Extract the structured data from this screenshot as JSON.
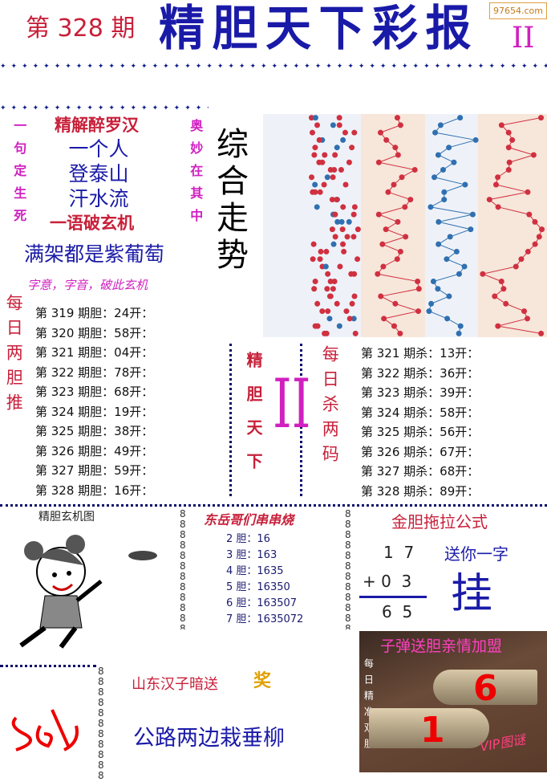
{
  "header": {
    "issue": "第 328 期",
    "title": "精胆天下彩报",
    "suffix": "II",
    "watermark": "97654.com"
  },
  "riddle": {
    "left_vertical": "一句定生死",
    "right_vertical": "奥妙在其中",
    "heading": "精解醉罗汉",
    "lines": [
      "一个人",
      "登泰山",
      "汗水流"
    ],
    "footer": "一语破玄机",
    "answer": "满架都是紫葡萄",
    "hint": "字意，字音，破此玄机"
  },
  "trend": {
    "label": "综合走势"
  },
  "daily_dan": {
    "label": "每日两胆推",
    "items": [
      "第 319 期胆：24开：",
      "第 320 期胆：58开：",
      "第 321 期胆：04开：",
      "第 322 期胆：78开：",
      "第 323 期胆：68开：",
      "第 324 期胆：19开：",
      "第 325 期胆：38开：",
      "第 326 期胆：49开：",
      "第 327 期胆：59开：",
      "第 328 期胆：16开："
    ]
  },
  "center_banner": {
    "text": "精胆天下",
    "mark": "II"
  },
  "daily_kill": {
    "label": "每日杀两码",
    "items": [
      "第 321 期杀：13开：",
      "第 322 期杀：36开：",
      "第 323 期杀：39开：",
      "第 324 期杀：58开：",
      "第 325 期杀：56开：",
      "第 326 期杀：67开：",
      "第 327 期杀：68开：",
      "第 328 期杀：89开："
    ]
  },
  "xuanji": {
    "title": "精胆玄机图"
  },
  "chuan": {
    "title": "东岳哥们串串烧",
    "items": [
      "2 胆：16",
      "3 胆：163",
      "4 胆：1635",
      "5 胆：16350",
      "6 胆：163507",
      "7 胆：1635072"
    ]
  },
  "formula": {
    "title": "金胆拖拉公式",
    "row1": "1  7",
    "row2": "+ 0  3",
    "result": "6  5",
    "gift_label": "送你一字",
    "gift_char": "挂"
  },
  "shandong": {
    "title": "山东汉子暗送",
    "badge": "奖",
    "verse": "公路两边栽垂柳"
  },
  "bullet": {
    "title": "子弹送胆亲情加盟",
    "side": "每日精准双胆",
    "num1": "1",
    "num2": "6",
    "stamp": "VIP图谜"
  },
  "colors": {
    "red": "#c8203a",
    "blue": "#1a1aa8",
    "magenta": "#d020c0"
  }
}
